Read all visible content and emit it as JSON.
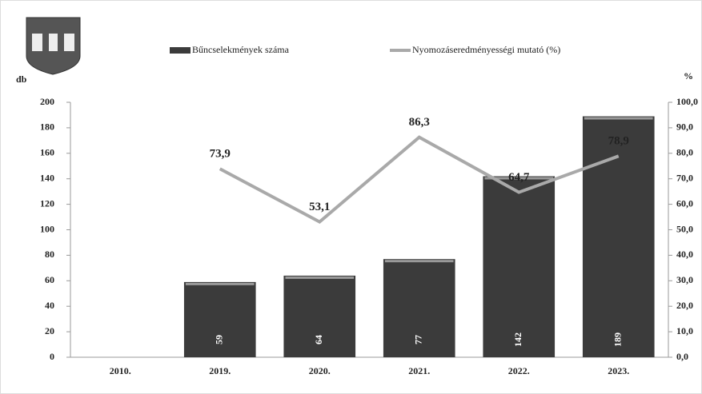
{
  "chart_data": {
    "type": "bar",
    "categories": [
      "2010.",
      "2019.",
      "2020.",
      "2021.",
      "2022.",
      "2023."
    ],
    "y_label": "db",
    "y2_label": "%",
    "ylim": [
      0,
      200
    ],
    "yticks": [
      0,
      20,
      40,
      60,
      80,
      100,
      120,
      140,
      160,
      180,
      200
    ],
    "y2lim": [
      0,
      100
    ],
    "y2ticks": [
      {
        "value": 0,
        "label": "0,0"
      },
      {
        "value": 10,
        "label": "10,0"
      },
      {
        "value": 20,
        "label": "20,0"
      },
      {
        "value": 30,
        "label": "30,0"
      },
      {
        "value": 40,
        "label": "40,0"
      },
      {
        "value": 50,
        "label": "50,0"
      },
      {
        "value": 60,
        "label": "60,0"
      },
      {
        "value": 70,
        "label": "70,0"
      },
      {
        "value": 80,
        "label": "80,0"
      },
      {
        "value": 90,
        "label": "90,0"
      },
      {
        "value": 100,
        "label": "100,0"
      }
    ],
    "series": [
      {
        "name": "Bűncselekmények száma",
        "type": "bar",
        "color": "#3b3b3b",
        "values": [
          null,
          59,
          64,
          77,
          142,
          189
        ]
      },
      {
        "name": "Nyomozáseredményességi mutató (%)",
        "type": "line",
        "axis": "y2",
        "color": "#a9a9a9",
        "values": [
          null,
          73.9,
          53.1,
          86.3,
          64.7,
          78.9
        ],
        "value_labels": [
          null,
          "73,9",
          "53,1",
          "86,3",
          "64,7",
          "78,9"
        ]
      }
    ]
  }
}
